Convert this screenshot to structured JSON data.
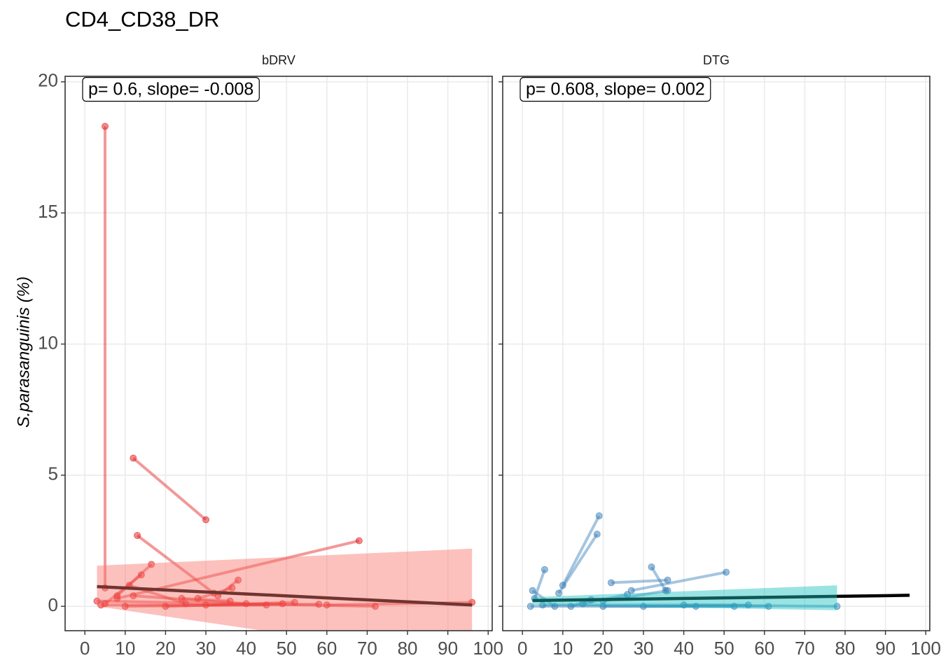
{
  "title": "CD4_CD38_DR",
  "y_label": "S.parasanguinis (%)",
  "chart_data": [
    {
      "type": "scatter",
      "title": "bDRV",
      "annotation": "p= 0.6, slope= -0.008",
      "color": "#e41a1c",
      "xlim": [
        -4.9,
        101
      ],
      "ylim": [
        -0.93,
        20.21
      ],
      "xticks": [
        0,
        10,
        20,
        30,
        40,
        50,
        60,
        70,
        80,
        90,
        100
      ],
      "yticks": [
        0,
        5,
        10,
        15,
        20
      ],
      "grid": true,
      "pairs": [
        {
          "x": [
            5,
            5
          ],
          "y": [
            18.3,
            0.7
          ]
        },
        {
          "x": [
            12,
            30
          ],
          "y": [
            5.65,
            3.3
          ]
        },
        {
          "x": [
            13,
            32
          ],
          "y": [
            2.7,
            0.5
          ]
        },
        {
          "x": [
            68,
            8
          ],
          "y": [
            2.5,
            0.3
          ]
        },
        {
          "x": [
            16.5,
            8
          ],
          "y": [
            1.6,
            0.4
          ]
        },
        {
          "x": [
            14,
            5
          ],
          "y": [
            1.2,
            0.1
          ]
        },
        {
          "x": [
            38,
            33
          ],
          "y": [
            1.0,
            0.4
          ]
        },
        {
          "x": [
            36.5,
            28
          ],
          "y": [
            0.7,
            0.3
          ]
        },
        {
          "x": [
            12,
            40
          ],
          "y": [
            0.4,
            0.1
          ]
        },
        {
          "x": [
            96,
            60
          ],
          "y": [
            0.15,
            0.05
          ]
        },
        {
          "x": [
            72,
            3
          ],
          "y": [
            0,
            0.2
          ]
        },
        {
          "x": [
            52,
            20
          ],
          "y": [
            0.15,
            0
          ]
        },
        {
          "x": [
            49,
            30
          ],
          "y": [
            0.1,
            0.05
          ]
        },
        {
          "x": [
            45,
            4
          ],
          "y": [
            0.05,
            0.05
          ]
        },
        {
          "x": [
            58,
            10
          ],
          "y": [
            0.08,
            0
          ]
        },
        {
          "x": [
            24,
            36
          ],
          "y": [
            0.3,
            0.2
          ]
        },
        {
          "x": [
            11,
            25
          ],
          "y": [
            0.8,
            0.1
          ]
        }
      ],
      "fit": {
        "x": [
          3,
          96
        ],
        "y": [
          0.75,
          0.05
        ],
        "color": "#000000"
      },
      "band": {
        "x": [
          3,
          96
        ],
        "lower": [
          0,
          -2.1
        ],
        "upper": [
          1.55,
          2.2
        ],
        "color": "#f8766d"
      }
    },
    {
      "type": "scatter",
      "title": "DTG",
      "annotation": "p= 0.608, slope= 0.002",
      "color": "#377eb8",
      "xlim": [
        -4.9,
        101
      ],
      "ylim": [
        -0.93,
        20.21
      ],
      "xticks": [
        0,
        10,
        20,
        30,
        40,
        50,
        60,
        70,
        80,
        90,
        100
      ],
      "yticks": [
        0,
        5,
        10,
        15,
        20
      ],
      "grid": true,
      "pairs": [
        {
          "x": [
            19,
            10
          ],
          "y": [
            3.45,
            0.8
          ]
        },
        {
          "x": [
            18.5,
            9
          ],
          "y": [
            2.75,
            0.5
          ]
        },
        {
          "x": [
            5.5,
            3
          ],
          "y": [
            1.4,
            0.3
          ]
        },
        {
          "x": [
            2.5,
            8
          ],
          "y": [
            0.6,
            0
          ]
        },
        {
          "x": [
            32,
            35.5
          ],
          "y": [
            1.5,
            0.6
          ]
        },
        {
          "x": [
            22,
            36
          ],
          "y": [
            0.9,
            1.0
          ]
        },
        {
          "x": [
            50.5,
            27
          ],
          "y": [
            1.3,
            0.6
          ]
        },
        {
          "x": [
            36,
            20
          ],
          "y": [
            0.6,
            0.2
          ]
        },
        {
          "x": [
            26,
            15
          ],
          "y": [
            0.45,
            0.1
          ]
        },
        {
          "x": [
            78,
            40
          ],
          "y": [
            0,
            0.05
          ]
        },
        {
          "x": [
            61,
            20
          ],
          "y": [
            0,
            0
          ]
        },
        {
          "x": [
            56,
            5
          ],
          "y": [
            0.05,
            0.05
          ]
        },
        {
          "x": [
            52.5,
            30
          ],
          "y": [
            0,
            0
          ]
        },
        {
          "x": [
            43,
            2
          ],
          "y": [
            0,
            0
          ]
        },
        {
          "x": [
            17,
            12
          ],
          "y": [
            0.25,
            0
          ]
        }
      ],
      "fit": {
        "x": [
          2.5,
          96
        ],
        "y": [
          0.22,
          0.42
        ],
        "color": "#000000"
      },
      "band": {
        "x": [
          2.5,
          78
        ],
        "lower": [
          0.05,
          -0.15
        ],
        "upper": [
          0.35,
          0.8
        ],
        "color": "#20c0c0"
      }
    }
  ]
}
